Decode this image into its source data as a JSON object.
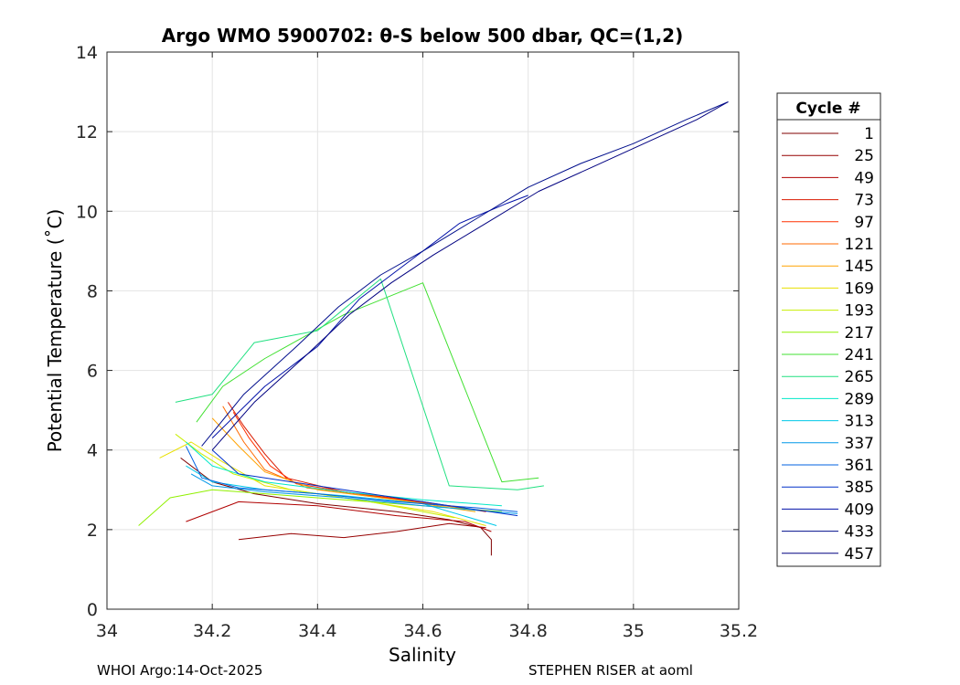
{
  "chart_data": {
    "type": "line",
    "title": "Argo WMO 5900702: θ-S below 500 dbar,  QC=(1,2)",
    "xlabel": "Salinity",
    "ylabel": "Potential Temperature (˚C)",
    "xlim": [
      34,
      35.2
    ],
    "ylim": [
      0,
      14
    ],
    "x_ticks": [
      34,
      34.2,
      34.4,
      34.6,
      34.8,
      35,
      35.2
    ],
    "x_tick_labels": [
      "34",
      "34.2",
      "34.4",
      "34.6",
      "34.8",
      "35",
      "35.2"
    ],
    "y_ticks": [
      0,
      2,
      4,
      6,
      8,
      10,
      12,
      14
    ],
    "y_tick_labels": [
      "0",
      "2",
      "4",
      "6",
      "8",
      "10",
      "12",
      "14"
    ],
    "grid": true,
    "legend_title": "Cycle #",
    "legend_position": "right",
    "series": [
      {
        "name": "1",
        "color": "#7f0000",
        "x": [
          34.14,
          34.2,
          34.28,
          34.4,
          34.55,
          34.65,
          34.71,
          34.73,
          34.73
        ],
        "y": [
          3.8,
          3.2,
          2.9,
          2.65,
          2.45,
          2.25,
          2.05,
          1.75,
          1.35
        ]
      },
      {
        "name": "25",
        "color": "#960000",
        "x": [
          34.25,
          34.35,
          34.45,
          34.55,
          34.65,
          34.72
        ],
        "y": [
          1.75,
          1.9,
          1.8,
          1.95,
          2.15,
          2.05
        ]
      },
      {
        "name": "49",
        "color": "#b00000",
        "x": [
          34.15,
          34.25,
          34.4,
          34.55,
          34.68,
          34.73
        ],
        "y": [
          2.2,
          2.7,
          2.6,
          2.35,
          2.2,
          1.95
        ]
      },
      {
        "name": "73",
        "color": "#d91a00",
        "x": [
          34.23,
          34.26,
          34.3,
          34.34,
          34.45,
          34.6,
          34.72
        ],
        "y": [
          5.2,
          4.6,
          3.9,
          3.3,
          2.95,
          2.7,
          2.45
        ]
      },
      {
        "name": "97",
        "color": "#ff3000",
        "x": [
          34.24,
          34.27,
          34.31,
          34.36,
          34.5,
          34.68
        ],
        "y": [
          4.95,
          4.3,
          3.6,
          3.15,
          2.85,
          2.55
        ]
      },
      {
        "name": "121",
        "color": "#ff6a00",
        "x": [
          34.22,
          34.26,
          34.3,
          34.38,
          34.52,
          34.7
        ],
        "y": [
          5.1,
          4.2,
          3.5,
          3.05,
          2.8,
          2.5
        ]
      },
      {
        "name": "145",
        "color": "#ffa200",
        "x": [
          34.2,
          34.25,
          34.3,
          34.4,
          34.55,
          34.7
        ],
        "y": [
          4.8,
          4.1,
          3.45,
          3.0,
          2.75,
          2.45
        ]
      },
      {
        "name": "169",
        "color": "#e8e000",
        "x": [
          34.1,
          34.16,
          34.22,
          34.3,
          34.45,
          34.62,
          34.72
        ],
        "y": [
          3.8,
          4.2,
          3.7,
          3.1,
          2.8,
          2.45,
          2.1
        ]
      },
      {
        "name": "193",
        "color": "#c8ee00",
        "x": [
          34.13,
          34.18,
          34.24,
          34.35,
          34.5,
          34.66
        ],
        "y": [
          4.4,
          3.9,
          3.4,
          3.0,
          2.7,
          2.3
        ]
      },
      {
        "name": "217",
        "color": "#90f000",
        "x": [
          34.06,
          34.12,
          34.2,
          34.3,
          34.45,
          34.6,
          34.75
        ],
        "y": [
          2.1,
          2.8,
          3.0,
          2.9,
          2.75,
          2.6,
          2.45
        ]
      },
      {
        "name": "241",
        "color": "#40e030",
        "x": [
          34.17,
          34.22,
          34.3,
          34.45,
          34.6,
          34.75,
          34.82
        ],
        "y": [
          4.7,
          5.6,
          6.3,
          7.4,
          8.2,
          3.2,
          3.3
        ]
      },
      {
        "name": "265",
        "color": "#20e080",
        "x": [
          34.13,
          34.2,
          34.28,
          34.4,
          34.52,
          34.65,
          34.78,
          34.83
        ],
        "y": [
          5.2,
          5.4,
          6.7,
          7.0,
          8.3,
          3.1,
          3.0,
          3.1
        ]
      },
      {
        "name": "289",
        "color": "#00e8c8",
        "x": [
          34.15,
          34.2,
          34.3,
          34.45,
          34.6,
          34.75
        ],
        "y": [
          4.2,
          3.6,
          3.2,
          2.95,
          2.75,
          2.6
        ]
      },
      {
        "name": "313",
        "color": "#00c8e8",
        "x": [
          34.15,
          34.2,
          34.3,
          34.45,
          34.6,
          34.74
        ],
        "y": [
          3.6,
          3.2,
          3.0,
          2.85,
          2.65,
          2.1
        ]
      },
      {
        "name": "337",
        "color": "#0098e8",
        "x": [
          34.16,
          34.2,
          34.3,
          34.45,
          34.6,
          34.78
        ],
        "y": [
          3.4,
          3.1,
          2.95,
          2.8,
          2.6,
          2.4
        ]
      },
      {
        "name": "361",
        "color": "#0060e0",
        "x": [
          34.15,
          34.18,
          34.25,
          34.4,
          34.55,
          34.7,
          34.78
        ],
        "y": [
          4.1,
          3.3,
          3.05,
          2.9,
          2.7,
          2.55,
          2.45
        ]
      },
      {
        "name": "385",
        "color": "#0030c8",
        "x": [
          34.2,
          34.25,
          34.35,
          34.45,
          34.55,
          34.65,
          34.78
        ],
        "y": [
          4.0,
          3.4,
          3.2,
          3.0,
          2.8,
          2.6,
          2.35
        ]
      },
      {
        "name": "409",
        "color": "#0010a8",
        "x": [
          34.2,
          34.3,
          34.4,
          34.48,
          34.58,
          34.67,
          34.76,
          34.8
        ],
        "y": [
          4.3,
          5.6,
          6.6,
          7.8,
          8.8,
          9.7,
          10.2,
          10.4
        ]
      },
      {
        "name": "433",
        "color": "#000e8c",
        "x": [
          34.18,
          34.26,
          34.36,
          34.44,
          34.52,
          34.6,
          34.7,
          34.8,
          34.9,
          35.0,
          35.1,
          35.18
        ],
        "y": [
          4.1,
          5.4,
          6.6,
          7.6,
          8.4,
          9.0,
          9.8,
          10.6,
          11.2,
          11.7,
          12.3,
          12.75
        ]
      },
      {
        "name": "457",
        "color": "#000080",
        "x": [
          34.2,
          34.28,
          34.38,
          34.46,
          34.54,
          34.62,
          34.72,
          34.82,
          34.92,
          35.02,
          35.12,
          35.18
        ],
        "y": [
          4.0,
          5.2,
          6.4,
          7.4,
          8.2,
          8.9,
          9.7,
          10.5,
          11.1,
          11.7,
          12.3,
          12.75
        ]
      }
    ]
  },
  "footer": {
    "left": "WHOI Argo:14-Oct-2025",
    "right": "STEPHEN RISER at aoml"
  }
}
